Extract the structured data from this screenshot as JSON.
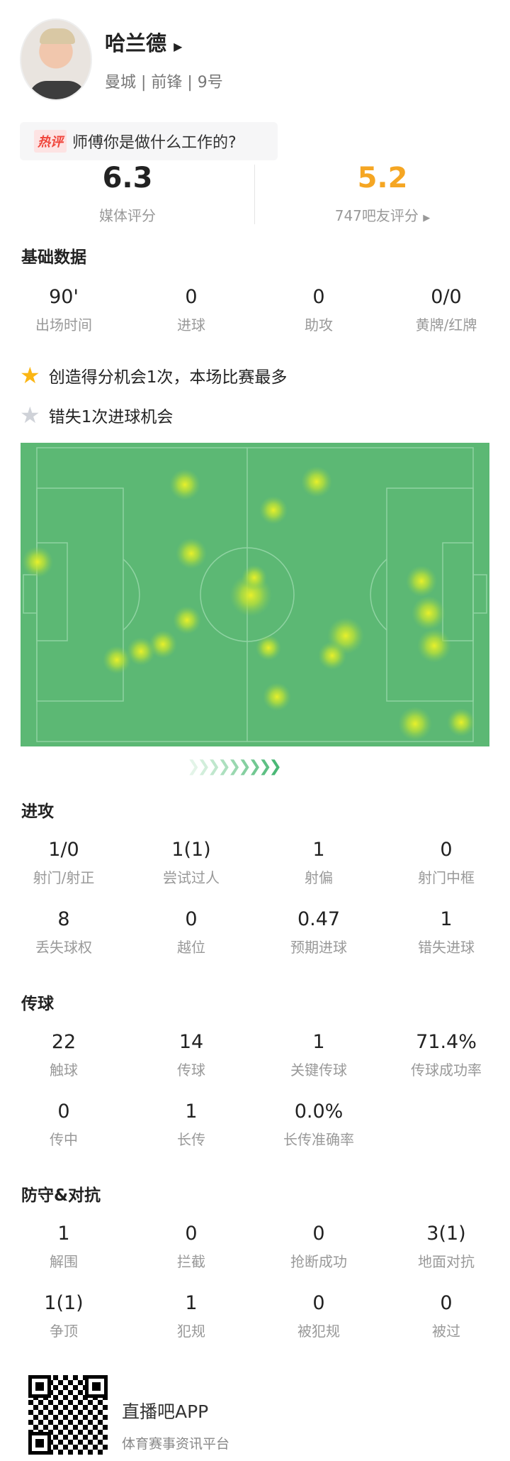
{
  "player": {
    "name": "哈兰德",
    "team_line": "曼城 | 前锋 | 9号"
  },
  "hot_comment": {
    "tag": "热评",
    "text": "师傅你是做什么工作的?"
  },
  "ratings": {
    "media_value": "6.3",
    "media_label": "媒体评分",
    "fan_value": "5.2",
    "fan_label": "747吧友评分",
    "fan_color": "#f5a623"
  },
  "basic": {
    "title": "基础数据",
    "items": [
      {
        "v": "90'",
        "l": "出场时间"
      },
      {
        "v": "0",
        "l": "进球"
      },
      {
        "v": "0",
        "l": "助攻"
      },
      {
        "v": "0/0",
        "l": "黄牌/红牌"
      }
    ]
  },
  "highlights": [
    {
      "icon": "star-gold",
      "text": "创造得分机会1次，本场比赛最多"
    },
    {
      "icon": "star-grey",
      "text": "错失1次进球机会"
    }
  ],
  "attack": {
    "title": "进攻",
    "items": [
      {
        "v": "1/0",
        "l": "射门/射正"
      },
      {
        "v": "1(1)",
        "l": "尝试过人"
      },
      {
        "v": "1",
        "l": "射偏"
      },
      {
        "v": "0",
        "l": "射门中框"
      },
      {
        "v": "8",
        "l": "丢失球权"
      },
      {
        "v": "0",
        "l": "越位"
      },
      {
        "v": "0.47",
        "l": "预期进球"
      },
      {
        "v": "1",
        "l": "错失进球"
      }
    ]
  },
  "passing": {
    "title": "传球",
    "items": [
      {
        "v": "22",
        "l": "触球"
      },
      {
        "v": "14",
        "l": "传球"
      },
      {
        "v": "1",
        "l": "关键传球"
      },
      {
        "v": "71.4%",
        "l": "传球成功率"
      },
      {
        "v": "0",
        "l": "传中"
      },
      {
        "v": "1",
        "l": "长传"
      },
      {
        "v": "0.0%",
        "l": "长传准确率"
      }
    ]
  },
  "defense": {
    "title": "防守&对抗",
    "items": [
      {
        "v": "1",
        "l": "解围"
      },
      {
        "v": "0",
        "l": "拦截"
      },
      {
        "v": "0",
        "l": "抢断成功"
      },
      {
        "v": "3(1)",
        "l": "地面对抗"
      },
      {
        "v": "1(1)",
        "l": "争顶"
      },
      {
        "v": "1",
        "l": "犯规"
      },
      {
        "v": "0",
        "l": "被犯规"
      },
      {
        "v": "0",
        "l": "被过"
      }
    ]
  },
  "footer": {
    "app_name": "直播吧APP",
    "slogan": "体育赛事资讯平台"
  }
}
